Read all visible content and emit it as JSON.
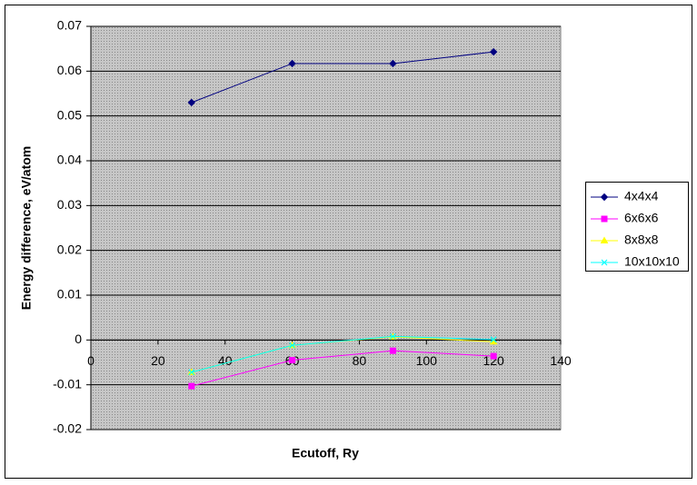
{
  "chart_data": {
    "type": "line",
    "x_label": "Ecutoff, Ry",
    "y_label": "Energy difference, eV/atom",
    "x": [
      30,
      60,
      90,
      120
    ],
    "series": [
      {
        "name": "4x4x4",
        "color": "#000080",
        "marker": "diamond",
        "values": [
          0.053,
          0.0617,
          0.0617,
          0.0643
        ]
      },
      {
        "name": "6x6x6",
        "color": "#ff00ff",
        "marker": "square",
        "values": [
          -0.0103,
          -0.0045,
          -0.0024,
          -0.0036
        ]
      },
      {
        "name": "8x8x8",
        "color": "#ffff00",
        "marker": "triangle",
        "values": [
          -0.0072,
          -0.0012,
          0.0007,
          -0.0004
        ]
      },
      {
        "name": "10x10x10",
        "color": "#00ffff",
        "marker": "x",
        "values": [
          -0.0072,
          -0.0012,
          0.0008,
          0.0001
        ]
      }
    ],
    "xlim": [
      0,
      140
    ],
    "xticks": [
      0,
      20,
      40,
      60,
      80,
      100,
      120,
      140
    ],
    "ylim": [
      -0.02,
      0.07
    ],
    "yticks": [
      -0.02,
      -0.01,
      0,
      0.01,
      0.02,
      0.03,
      0.04,
      0.05,
      0.06,
      0.07
    ],
    "grid": true,
    "legend": "right"
  }
}
